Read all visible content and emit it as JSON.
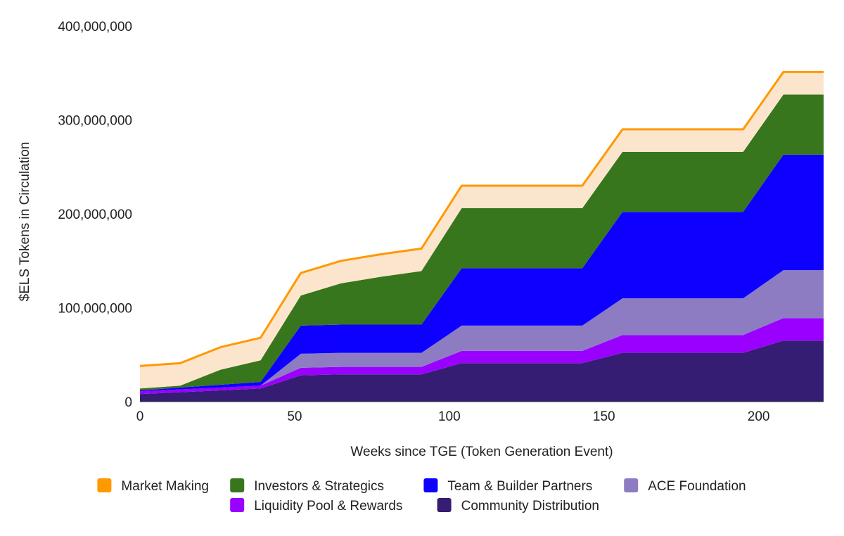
{
  "chart_data": {
    "type": "area",
    "stacked": true,
    "xlabel": "Weeks since TGE (Token Generation Event)",
    "ylabel": "$ELS Tokens in Circulation",
    "xlim": [
      0,
      221
    ],
    "ylim": [
      0,
      400000000
    ],
    "x_ticks": [
      0,
      50,
      100,
      150,
      200
    ],
    "x_tick_labels": [
      "0",
      "50",
      "100",
      "150",
      "200"
    ],
    "y_ticks": [
      0,
      100000000,
      200000000,
      300000000,
      400000000
    ],
    "y_tick_labels": [
      "0",
      "100,000,000",
      "200,000,000",
      "300,000,000",
      "400,000,000"
    ],
    "legend_position": "bottom",
    "x": [
      0,
      13,
      26,
      39,
      52,
      65,
      78,
      91,
      104,
      117,
      130,
      143,
      156,
      169,
      182,
      195,
      208,
      221
    ],
    "series": [
      {
        "name": "Community Distribution",
        "color": "#341d72",
        "values": [
          8000000,
          10000000,
          12000000,
          14000000,
          28000000,
          29000000,
          29000000,
          29000000,
          41000000,
          41000000,
          41000000,
          41000000,
          52000000,
          52000000,
          52000000,
          52000000,
          65000000,
          65000000
        ]
      },
      {
        "name": "Liquidity Pool & Rewards",
        "color": "#9900ff",
        "values": [
          3000000,
          3000000,
          3000000,
          3000000,
          8000000,
          8000000,
          8000000,
          8000000,
          13000000,
          13000000,
          13000000,
          13000000,
          19000000,
          19000000,
          19000000,
          19000000,
          24000000,
          24000000
        ]
      },
      {
        "name": "ACE Foundation",
        "color": "#8e7cc3",
        "values": [
          0,
          0,
          0,
          0,
          15000000,
          15000000,
          15000000,
          15000000,
          27000000,
          27000000,
          27000000,
          27000000,
          39000000,
          39000000,
          39000000,
          39000000,
          51000000,
          51000000
        ]
      },
      {
        "name": "Team & Builder Partners",
        "color": "#0d00ff",
        "values": [
          1000000,
          2000000,
          3000000,
          4000000,
          30000000,
          30000000,
          30000000,
          30000000,
          61000000,
          61000000,
          61000000,
          61000000,
          92000000,
          92000000,
          92000000,
          92000000,
          123000000,
          123000000
        ]
      },
      {
        "name": "Investors & Strategics",
        "color": "#38761d",
        "values": [
          2000000,
          2000000,
          16000000,
          23000000,
          32000000,
          44000000,
          51000000,
          57000000,
          64000000,
          64000000,
          64000000,
          64000000,
          64000000,
          64000000,
          64000000,
          64000000,
          64000000,
          64000000
        ]
      },
      {
        "name": "Market Making",
        "color": "#fce5cd",
        "line_color": "#ff9900",
        "values": [
          24000000,
          24000000,
          24000000,
          24000000,
          24000000,
          24000000,
          24000000,
          24000000,
          24000000,
          24000000,
          24000000,
          24000000,
          24000000,
          24000000,
          24000000,
          24000000,
          24000000,
          24000000
        ]
      }
    ],
    "legend_items": [
      {
        "name": "Market Making",
        "color": "#ff9900"
      },
      {
        "name": "Investors & Strategics",
        "color": "#38761d"
      },
      {
        "name": "Team & Builder Partners",
        "color": "#0d00ff"
      },
      {
        "name": "ACE Foundation",
        "color": "#8e7cc3"
      },
      {
        "name": "Liquidity Pool & Rewards",
        "color": "#9900ff"
      },
      {
        "name": "Community Distribution",
        "color": "#341d72"
      }
    ]
  }
}
